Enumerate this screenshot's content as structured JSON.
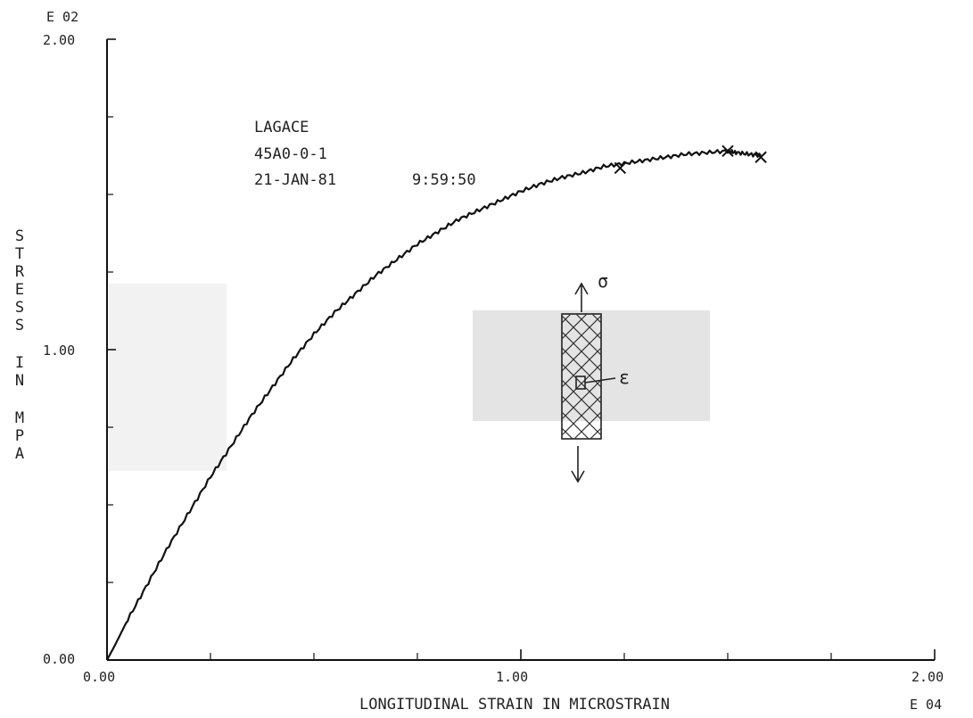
{
  "chart_data": {
    "type": "line",
    "title": "",
    "xlabel": "LONGITUDINAL STRAIN IN MICROSTRAIN",
    "ylabel": "STRESS IN MPA",
    "x_multiplier": "E 04",
    "y_multiplier": "E 02",
    "xlim": [
      0,
      2.0
    ],
    "ylim": [
      0,
      2.0
    ],
    "x_ticks": [
      "0.00",
      "1.00",
      "2.00"
    ],
    "y_ticks": [
      "0.00",
      "1.00",
      "2.00"
    ],
    "grid": false,
    "annotations": {
      "name": "LAGACE",
      "specimen": "45A0-0-1",
      "date": "21-JAN-81",
      "time": "9:59:50",
      "sketch_labels": {
        "stress": "σ",
        "strain": "ε"
      }
    },
    "series": [
      {
        "x": [
          0.0,
          0.02,
          0.05,
          0.1,
          0.15,
          0.2,
          0.25,
          0.3,
          0.35,
          0.4,
          0.45,
          0.5,
          0.55,
          0.6,
          0.65,
          0.7,
          0.75,
          0.8,
          0.85,
          0.9,
          0.95,
          1.0,
          1.05,
          1.1,
          1.15,
          1.2,
          1.25,
          1.3,
          1.35,
          1.4,
          1.45,
          1.5,
          1.52,
          1.55,
          1.58
        ],
        "y": [
          0.0,
          0.05,
          0.13,
          0.25,
          0.37,
          0.48,
          0.59,
          0.69,
          0.79,
          0.88,
          0.97,
          1.05,
          1.12,
          1.18,
          1.24,
          1.29,
          1.34,
          1.38,
          1.42,
          1.45,
          1.48,
          1.51,
          1.535,
          1.555,
          1.57,
          1.59,
          1.6,
          1.61,
          1.62,
          1.63,
          1.635,
          1.64,
          1.635,
          1.63,
          1.625
        ]
      }
    ],
    "markers": [
      {
        "x": 1.24,
        "y": 1.585
      },
      {
        "x": 1.5,
        "y": 1.64
      },
      {
        "x": 1.58,
        "y": 1.62
      }
    ]
  }
}
